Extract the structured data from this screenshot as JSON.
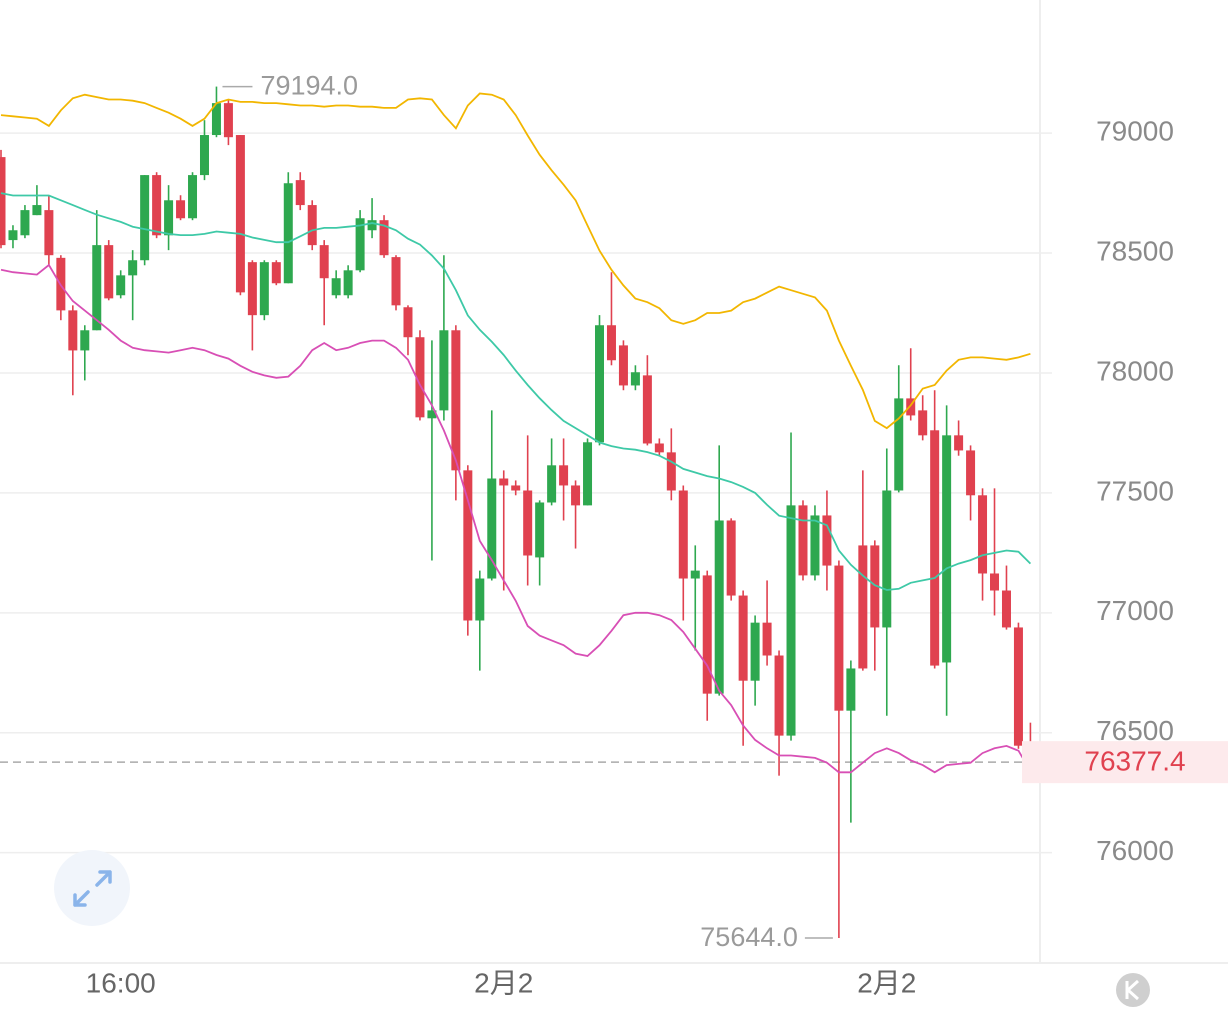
{
  "chart_data": {
    "type": "candlestick",
    "categories": [
      null,
      null,
      null,
      null,
      null,
      null,
      null,
      null,
      null,
      null,
      "16:00",
      null,
      null,
      null,
      null,
      null,
      null,
      null,
      null,
      null,
      null,
      null,
      null,
      null,
      null,
      null,
      null,
      null,
      null,
      null,
      null,
      null,
      null,
      null,
      null,
      null,
      null,
      null,
      null,
      null,
      null,
      null,
      "2月2",
      null,
      null,
      null,
      null,
      null,
      null,
      null,
      null,
      null,
      null,
      null,
      null,
      null,
      null,
      null,
      null,
      null,
      null,
      null,
      null,
      null,
      null,
      null,
      null,
      null,
      null,
      null,
      null,
      null,
      null,
      null,
      "2月2",
      null,
      null,
      null,
      null,
      null,
      null,
      null,
      null,
      null,
      null,
      null,
      null
    ],
    "open": [
      78900,
      78554,
      78574,
      78658,
      78679,
      78480,
      78261,
      78094,
      78178,
      78533,
      78324,
      78407,
      78470,
      78825,
      78574,
      78720,
      78645,
      78825,
      78992,
      79125,
      78992,
      78462,
      78241,
      78462,
      78374,
      78804,
      78700,
      78533,
      78324,
      78324,
      78428,
      78595,
      78637,
      78483,
      78274,
      78149,
      77811,
      77844,
      78178,
      77594,
      76968,
      77143,
      77560,
      77531,
      77510,
      77231,
      77460,
      77615,
      77531,
      77448,
      77711,
      78199,
      78115,
      77948,
      77990,
      77706,
      77669,
      77510,
      77143,
      77156,
      76663,
      77385,
      77072,
      76717,
      76959,
      76822,
      76488,
      77448,
      77156,
      77406,
      77197,
      76592,
      77281,
      77281,
      76939,
      77510,
      77894,
      77844,
      77761,
      76793,
      77740,
      77677,
      77490,
      77164,
      77093,
      76939,
      76446
    ],
    "high": [
      78930,
      78616,
      78700,
      78783,
      78741,
      78491,
      78282,
      78199,
      78679,
      78554,
      78428,
      78512,
      78825,
      78837,
      78783,
      78741,
      78837,
      79054,
      79194,
      79138,
      78992,
      78470,
      78470,
      78470,
      78837,
      78837,
      78720,
      78554,
      78428,
      78449,
      78679,
      78729,
      78658,
      78491,
      78282,
      78178,
      78136,
      78491,
      78199,
      77615,
      77176,
      77844,
      77594,
      77552,
      77740,
      77469,
      77727,
      77727,
      77552,
      77727,
      78241,
      78420,
      78136,
      78032,
      78074,
      77727,
      77769,
      77531,
      77281,
      77176,
      77698,
      77394,
      77093,
      76989,
      77135,
      76843,
      77752,
      77469,
      77448,
      77510,
      77218,
      76801,
      77594,
      77302,
      77685,
      78032,
      78103,
      77907,
      77928,
      77865,
      77802,
      77698,
      77519,
      77519,
      77197,
      76959,
      76542
    ],
    "low": [
      78520,
      78520,
      78562,
      78658,
      78449,
      78220,
      77907,
      77969,
      78178,
      78303,
      78311,
      78220,
      78449,
      78562,
      78512,
      78637,
      78637,
      78804,
      78983,
      78950,
      78324,
      78094,
      78220,
      78366,
      78374,
      78679,
      78512,
      78199,
      78311,
      78311,
      78420,
      78562,
      78480,
      78261,
      78074,
      77802,
      77218,
      77802,
      77469,
      76905,
      76759,
      77135,
      77093,
      77490,
      77114,
      77114,
      77448,
      77385,
      77268,
      77448,
      77698,
      78032,
      77928,
      77928,
      77698,
      77655,
      77469,
      76968,
      76843,
      76550,
      76655,
      77051,
      76446,
      76613,
      76780,
      76321,
      76467,
      77135,
      77135,
      77093,
      75644,
      76125,
      76759,
      76759,
      76571,
      77502,
      77802,
      77719,
      76768,
      76571,
      77655,
      77385,
      77051,
      76989,
      76930,
      76433,
      76342
    ],
    "close": [
      78533,
      78595,
      78679,
      78700,
      78491,
      78261,
      78094,
      78178,
      78533,
      78311,
      78407,
      78470,
      78825,
      78574,
      78720,
      78645,
      78825,
      78992,
      79125,
      78983,
      78336,
      78241,
      78462,
      78374,
      78791,
      78700,
      78533,
      78395,
      78395,
      78428,
      78645,
      78637,
      78491,
      78282,
      78149,
      77815,
      77844,
      78178,
      77594,
      76968,
      77143,
      77560,
      77531,
      77510,
      77239,
      77460,
      77615,
      77531,
      77448,
      77711,
      78199,
      78053,
      77948,
      78003,
      77706,
      77669,
      77510,
      77143,
      77176,
      76663,
      77385,
      77072,
      76717,
      76959,
      76822,
      76488,
      77448,
      77156,
      77406,
      77197,
      76592,
      76768,
      76768,
      76939,
      77510,
      77894,
      77823,
      77740,
      76780,
      77740,
      77677,
      77490,
      77164,
      77093,
      76939,
      76446,
      76377.4
    ],
    "up_color": "#2ea84f",
    "down_color": "#e0414f",
    "bands": [
      {
        "color": "#f2b600",
        "values": [
          79075,
          79070,
          79065,
          79060,
          79030,
          79095,
          79145,
          79160,
          79150,
          79140,
          79140,
          79135,
          79125,
          79105,
          79085,
          79060,
          79030,
          79060,
          79125,
          79140,
          79130,
          79130,
          79125,
          79125,
          79120,
          79115,
          79115,
          79110,
          79115,
          79115,
          79110,
          79110,
          79105,
          79105,
          79140,
          79145,
          79140,
          79075,
          79020,
          79115,
          79165,
          79160,
          79140,
          79075,
          78990,
          78910,
          78845,
          78785,
          78720,
          78615,
          78510,
          78430,
          78365,
          78310,
          78295,
          78270,
          78220,
          78205,
          78220,
          78250,
          78250,
          78260,
          78295,
          78310,
          78335,
          78360,
          78345,
          78330,
          78315,
          78260,
          78135,
          78030,
          77930,
          77800,
          77770,
          77810,
          77865,
          77935,
          77950,
          78010,
          78055,
          78065,
          78065,
          78060,
          78055,
          78065,
          78080
        ]
      },
      {
        "color": "#3ec9a7",
        "values": [
          78750,
          78740,
          78740,
          78740,
          78740,
          78720,
          78700,
          78680,
          78660,
          78645,
          78630,
          78610,
          78600,
          78590,
          78580,
          78575,
          78575,
          78580,
          78590,
          78585,
          78580,
          78565,
          78555,
          78545,
          78545,
          78570,
          78595,
          78605,
          78605,
          78610,
          78615,
          78625,
          78615,
          78595,
          78560,
          78535,
          78490,
          78435,
          78345,
          78240,
          78180,
          78130,
          78075,
          78010,
          77950,
          77895,
          77845,
          77800,
          77770,
          77740,
          77710,
          77695,
          77685,
          77680,
          77670,
          77655,
          77630,
          77600,
          77585,
          77570,
          77560,
          77545,
          77525,
          77500,
          77450,
          77405,
          77395,
          77385,
          77385,
          77365,
          77260,
          77200,
          77155,
          77115,
          77095,
          77100,
          77125,
          77135,
          77145,
          77185,
          77205,
          77220,
          77240,
          77250,
          77260,
          77255,
          77205
        ]
      },
      {
        "color": "#d84fb5",
        "values": [
          78430,
          78420,
          78415,
          78410,
          78450,
          78365,
          78300,
          78260,
          78220,
          78180,
          78135,
          78105,
          78095,
          78090,
          78085,
          78095,
          78105,
          78095,
          78075,
          78060,
          78030,
          78005,
          77990,
          77980,
          77985,
          78030,
          78095,
          78125,
          78095,
          78105,
          78125,
          78135,
          78135,
          78105,
          78055,
          77950,
          77865,
          77760,
          77635,
          77470,
          77300,
          77220,
          77135,
          77050,
          76945,
          76905,
          76885,
          76865,
          76830,
          76820,
          76865,
          76925,
          76990,
          77000,
          77000,
          76990,
          76970,
          76920,
          76850,
          76780,
          76675,
          76615,
          76530,
          76470,
          76435,
          76405,
          76405,
          76400,
          76395,
          76375,
          76335,
          76335,
          76375,
          76415,
          76435,
          76415,
          76385,
          76365,
          76335,
          76365,
          76370,
          76375,
          76415,
          76435,
          76445,
          76425,
          76340
        ]
      }
    ],
    "ylim": [
      75540,
      79555
    ],
    "yticks": [
      76000,
      76500,
      77000,
      77500,
      78000,
      78500,
      79000
    ],
    "grid": true,
    "high_annotation": {
      "index": 18,
      "value": 79194,
      "label": "79194.0"
    },
    "low_annotation": {
      "index": 70,
      "value": 75644,
      "label": "75644.0"
    },
    "last_price": 76377.4
  }
}
